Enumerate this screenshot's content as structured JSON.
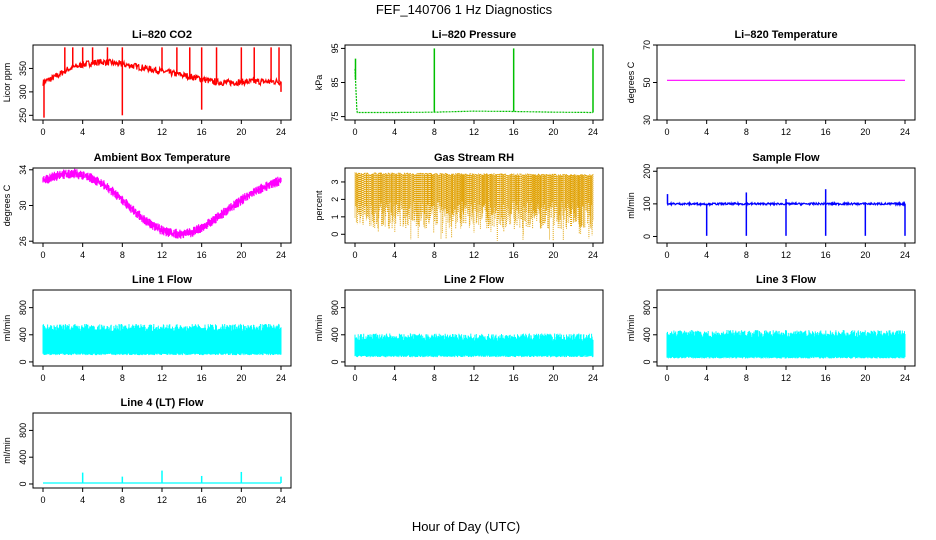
{
  "figure": {
    "title": "FEF_140706  1 Hz Diagnostics",
    "xlabel": "Hour of Day (UTC)"
  },
  "chart_data": [
    {
      "type": "line",
      "title": "Li–820 CO2",
      "ylabel": "Licor ppm",
      "color": "#ff0000",
      "xlim": [
        0,
        24
      ],
      "ylim": [
        240,
        400
      ],
      "xticks": [
        0,
        4,
        8,
        12,
        16,
        20,
        24
      ],
      "yticks": [
        250,
        300,
        350
      ],
      "x": [
        0,
        0.5,
        1,
        1.5,
        2,
        2.5,
        3,
        4,
        5,
        6,
        7,
        8,
        9,
        10,
        11,
        12,
        13,
        14,
        15,
        16,
        16.5,
        17,
        18,
        19,
        20,
        21,
        22,
        23,
        24
      ],
      "values": [
        320,
        325,
        330,
        335,
        342,
        348,
        352,
        358,
        362,
        364,
        362,
        358,
        356,
        352,
        348,
        344,
        340,
        336,
        332,
        328,
        325,
        322,
        320,
        320,
        321,
        322,
        322,
        322,
        322
      ],
      "spikes": [
        {
          "x": 2.2,
          "y": 395
        },
        {
          "x": 3.0,
          "y": 395
        },
        {
          "x": 4.0,
          "y": 395
        },
        {
          "x": 5.0,
          "y": 395
        },
        {
          "x": 6.5,
          "y": 395
        },
        {
          "x": 8.0,
          "y": 395
        },
        {
          "x": 12.0,
          "y": 395
        },
        {
          "x": 13.5,
          "y": 395
        },
        {
          "x": 14.8,
          "y": 395
        },
        {
          "x": 16.0,
          "y": 395
        },
        {
          "x": 17.5,
          "y": 395
        },
        {
          "x": 20.0,
          "y": 395
        },
        {
          "x": 21.3,
          "y": 395
        },
        {
          "x": 23.0,
          "y": 395
        },
        {
          "x": 23.8,
          "y": 395
        }
      ],
      "dips": [
        {
          "x": 0.1,
          "y": 245
        },
        {
          "x": 8.0,
          "y": 250
        },
        {
          "x": 16.0,
          "y": 262
        },
        {
          "x": 24.0,
          "y": 300
        }
      ]
    },
    {
      "type": "line",
      "title": "Li–820 Pressure",
      "ylabel": "kPa",
      "color": "#00c000",
      "xlim": [
        0,
        24
      ],
      "ylim": [
        74,
        96
      ],
      "xticks": [
        0,
        4,
        8,
        12,
        16,
        20,
        24
      ],
      "yticks": [
        75,
        85,
        95
      ],
      "x": [
        0,
        0.2,
        0.5,
        4,
        8,
        12,
        16,
        20,
        24
      ],
      "values": [
        89,
        76.2,
        76.2,
        76.2,
        76.3,
        76.6,
        76.5,
        76.3,
        76.2
      ],
      "spikes": [
        {
          "x": 0.05,
          "y": 92
        },
        {
          "x": 8.0,
          "y": 95
        },
        {
          "x": 16.0,
          "y": 95
        },
        {
          "x": 24.0,
          "y": 95
        }
      ]
    },
    {
      "type": "line",
      "title": "Li–820 Temperature",
      "ylabel": "degrees C",
      "color": "#ff00ff",
      "xlim": [
        0,
        24
      ],
      "ylim": [
        30,
        70
      ],
      "xticks": [
        0,
        4,
        8,
        12,
        16,
        20,
        24
      ],
      "yticks": [
        30,
        50,
        70
      ],
      "x": [
        0,
        24
      ],
      "values": [
        51.2,
        51.2
      ]
    },
    {
      "type": "line",
      "title": "Ambient Box Temperature",
      "ylabel": "degrees C",
      "color": "#ff00ff",
      "xlim": [
        0,
        24
      ],
      "ylim": [
        25.8,
        34.2
      ],
      "xticks": [
        0,
        4,
        8,
        12,
        16,
        20,
        24
      ],
      "yticks": [
        26,
        30,
        34
      ],
      "x": [
        0,
        1,
        2,
        3,
        4,
        5,
        6,
        7,
        8,
        9,
        10,
        11,
        12,
        13,
        14,
        15,
        16,
        17,
        18,
        19,
        20,
        21,
        22,
        23,
        24
      ],
      "values": [
        32.8,
        33.2,
        33.5,
        33.6,
        33.4,
        33.0,
        32.4,
        31.6,
        30.6,
        29.6,
        28.6,
        27.8,
        27.2,
        26.9,
        26.8,
        27.0,
        27.5,
        28.2,
        29.0,
        29.8,
        30.6,
        31.3,
        31.9,
        32.4,
        32.8
      ],
      "band": 0.55
    },
    {
      "type": "line",
      "title": "Gas Stream RH",
      "ylabel": "percent",
      "color": "#e0a000",
      "xlim": [
        0,
        24
      ],
      "ylim": [
        -0.5,
        3.8
      ],
      "xticks": [
        0,
        4,
        8,
        12,
        16,
        20,
        24
      ],
      "yticks": [
        0,
        1,
        2,
        3
      ],
      "x": [
        0,
        24
      ],
      "values": [
        3.55,
        3.45
      ],
      "floor": 0.3,
      "minimum": -0.4
    },
    {
      "type": "line",
      "title": "Sample Flow",
      "ylabel": "ml/min",
      "color": "#0000ff",
      "xlim": [
        0,
        24
      ],
      "ylim": [
        -20,
        210
      ],
      "xticks": [
        0,
        4,
        8,
        12,
        16,
        20,
        24
      ],
      "yticks": [
        0,
        100,
        200
      ],
      "x": [
        0,
        24
      ],
      "values": [
        100,
        100
      ],
      "spikes": [
        {
          "x": 0.05,
          "y": 130
        },
        {
          "x": 8.0,
          "y": 135
        },
        {
          "x": 12.0,
          "y": 115
        },
        {
          "x": 16.0,
          "y": 145
        },
        {
          "x": 20.0,
          "y": 105
        }
      ],
      "dips": [
        {
          "x": 4.0,
          "y": 2
        },
        {
          "x": 8.0,
          "y": 2
        },
        {
          "x": 12.0,
          "y": 2
        },
        {
          "x": 16.0,
          "y": 2
        },
        {
          "x": 20.0,
          "y": 2
        },
        {
          "x": 24.0,
          "y": 2
        }
      ]
    },
    {
      "type": "area",
      "title": "Line 1 Flow",
      "ylabel": "ml/min",
      "color": "#00ffff",
      "xlim": [
        0,
        24
      ],
      "ylim": [
        -60,
        1060
      ],
      "xticks": [
        0,
        4,
        8,
        12,
        16,
        20,
        24
      ],
      "yticks": [
        0,
        400,
        800
      ],
      "x": [
        0,
        24
      ],
      "upper": [
        560,
        560
      ],
      "lower": [
        100,
        100
      ]
    },
    {
      "type": "area",
      "title": "Line 2 Flow",
      "ylabel": "ml/min",
      "color": "#00ffff",
      "xlim": [
        0,
        24
      ],
      "ylim": [
        -60,
        1060
      ],
      "xticks": [
        0,
        4,
        8,
        12,
        16,
        20,
        24
      ],
      "yticks": [
        0,
        400,
        800
      ],
      "x": [
        0,
        24
      ],
      "upper": [
        420,
        420
      ],
      "lower": [
        70,
        70
      ]
    },
    {
      "type": "area",
      "title": "Line 3 Flow",
      "ylabel": "ml/min",
      "color": "#00ffff",
      "xlim": [
        0,
        24
      ],
      "ylim": [
        -60,
        1060
      ],
      "xticks": [
        0,
        4,
        8,
        12,
        16,
        20,
        24
      ],
      "yticks": [
        0,
        400,
        800
      ],
      "x": [
        0,
        24
      ],
      "upper": [
        470,
        470
      ],
      "lower": [
        50,
        50
      ]
    },
    {
      "type": "line",
      "title": "Line 4 (LT) Flow",
      "ylabel": "ml/min",
      "color": "#00ffff",
      "xlim": [
        0,
        24
      ],
      "ylim": [
        -60,
        1060
      ],
      "xticks": [
        0,
        4,
        8,
        12,
        16,
        20,
        24
      ],
      "yticks": [
        0,
        400,
        800
      ],
      "x": [
        0,
        24
      ],
      "values": [
        15,
        15
      ],
      "spikes": [
        {
          "x": 4.0,
          "y": 170
        },
        {
          "x": 8.0,
          "y": 110
        },
        {
          "x": 12.0,
          "y": 200
        },
        {
          "x": 16.0,
          "y": 120
        },
        {
          "x": 20.0,
          "y": 180
        },
        {
          "x": 24.0,
          "y": 110
        }
      ]
    }
  ]
}
